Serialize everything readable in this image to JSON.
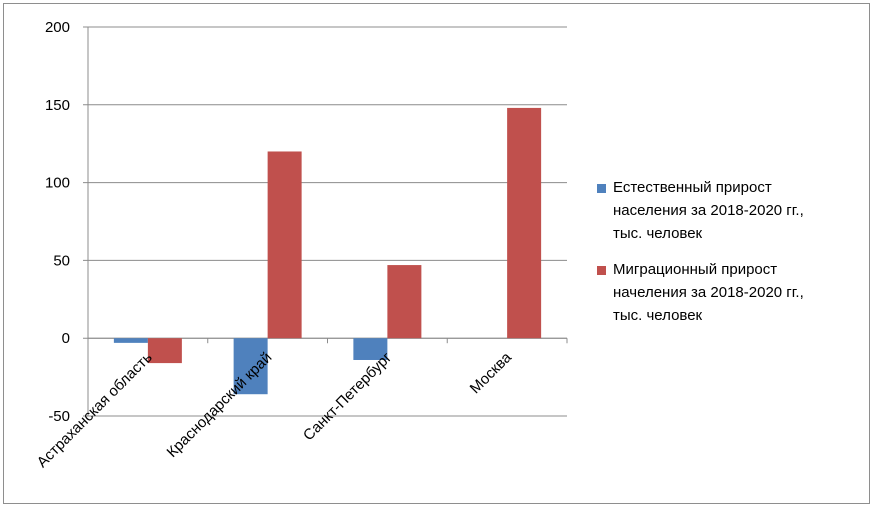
{
  "chart_data": {
    "type": "bar",
    "categories": [
      "Астраханская область",
      "Краснодарский край",
      "Санкт-Петербург",
      "Москва"
    ],
    "series": [
      {
        "name": "Естественный прирост населения за 2018-2020 гг., тыс. человек",
        "legend_lines": [
          "Естественный прирост",
          "населения за 2018-2020 гг.,",
          "тыс. человек"
        ],
        "values": [
          -3,
          -36,
          -14,
          0
        ],
        "color": "#4f81bd"
      },
      {
        "name": "Миграционный прирост нaчеления за 2018-2020 гг., тыс. человек",
        "legend_lines": [
          "Миграционный прирост",
          "начеления за 2018-2020 гг.,",
          "тыс. человек"
        ],
        "values": [
          -16,
          120,
          47,
          148
        ],
        "color": "#c0504d"
      }
    ],
    "ylim": [
      -50,
      200
    ],
    "yticks": [
      -50,
      0,
      50,
      100,
      150,
      200
    ],
    "grid": true,
    "legend_position": "right"
  }
}
